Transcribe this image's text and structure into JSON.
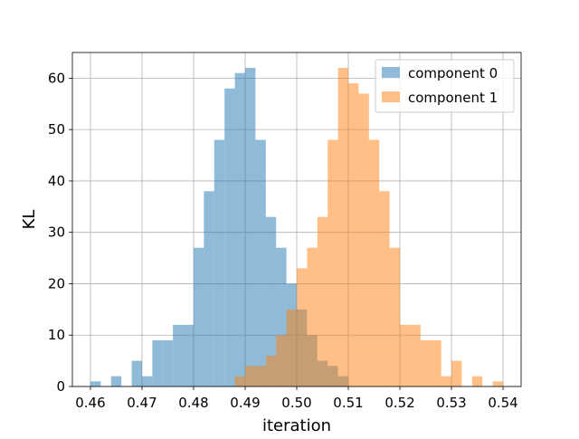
{
  "chart_data": {
    "type": "histogram",
    "xlabel": "iteration",
    "ylabel": "KL",
    "xlim": [
      0.4565,
      0.5435
    ],
    "ylim": [
      0,
      65
    ],
    "bin_width": 0.002,
    "x_ticks": [
      "0.46",
      "0.47",
      "0.48",
      "0.49",
      "0.50",
      "0.51",
      "0.52",
      "0.53",
      "0.54"
    ],
    "x_tick_values": [
      0.46,
      0.47,
      0.48,
      0.49,
      0.5,
      0.51,
      0.52,
      0.53,
      0.54
    ],
    "y_ticks": [
      "0",
      "10",
      "20",
      "30",
      "40",
      "50",
      "60"
    ],
    "y_tick_values": [
      0,
      10,
      20,
      30,
      40,
      50,
      60
    ],
    "grid": true,
    "legend_position": "top-right",
    "series": [
      {
        "name": "component 0",
        "color": "#1f77b4",
        "alpha": 0.5,
        "bin_starts": [
          0.46,
          0.464,
          0.468,
          0.47,
          0.472,
          0.474,
          0.476,
          0.478,
          0.48,
          0.482,
          0.484,
          0.486,
          0.488,
          0.49,
          0.492,
          0.494,
          0.496,
          0.498,
          0.5,
          0.502,
          0.504,
          0.506,
          0.508
        ],
        "counts": [
          1,
          2,
          5,
          2,
          9,
          9,
          12,
          12,
          27,
          38,
          48,
          58,
          61,
          62,
          48,
          33,
          27,
          20,
          15,
          10,
          5,
          4,
          2
        ]
      },
      {
        "name": "component 1",
        "color": "#ff7f0e",
        "alpha": 0.5,
        "bin_starts": [
          0.488,
          0.49,
          0.492,
          0.494,
          0.496,
          0.498,
          0.5,
          0.502,
          0.504,
          0.506,
          0.508,
          0.51,
          0.512,
          0.514,
          0.516,
          0.518,
          0.52,
          0.522,
          0.524,
          0.526,
          0.528,
          0.53,
          0.534,
          0.538
        ],
        "counts": [
          2,
          4,
          4,
          6,
          10,
          15,
          23,
          27,
          33,
          48,
          62,
          59,
          57,
          48,
          38,
          27,
          12,
          12,
          9,
          9,
          2,
          5,
          2,
          1
        ]
      }
    ]
  }
}
